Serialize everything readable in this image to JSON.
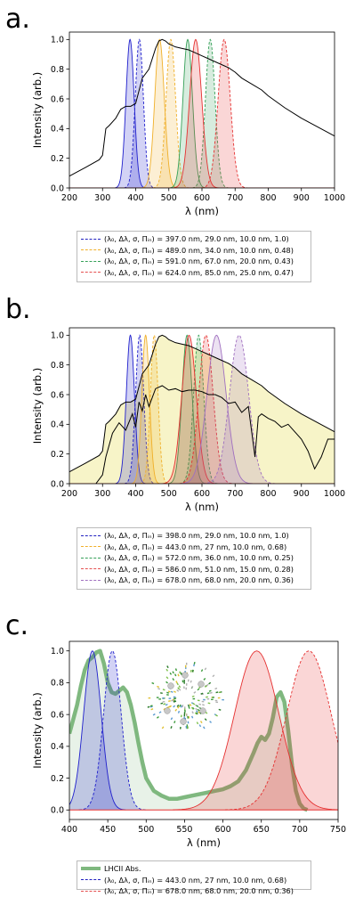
{
  "chart_data": [
    {
      "type": "line",
      "panel_label": "a.",
      "xlabel": "λ (nm)",
      "ylabel": "Intensity (arb.)",
      "xlim": [
        200,
        1000
      ],
      "ylim": [
        0,
        1.05
      ],
      "xticks": [
        "200",
        "300",
        "400",
        "500",
        "600",
        "700",
        "800",
        "900",
        "1000"
      ],
      "yticks": [
        "0.0",
        "0.2",
        "0.4",
        "0.6",
        "0.8",
        "1.0"
      ],
      "grid": false,
      "legend_position": "below",
      "spectrum": {
        "color": "#000000",
        "x": [
          200,
          250,
          290,
          300,
          310,
          320,
          340,
          355,
          370,
          385,
          400,
          420,
          440,
          460,
          470,
          480,
          490,
          500,
          520,
          540,
          560,
          580,
          600,
          620,
          650,
          680,
          700,
          720,
          750,
          780,
          800,
          850,
          900,
          950,
          1000
        ],
        "y": [
          0.08,
          0.14,
          0.19,
          0.22,
          0.4,
          0.42,
          0.47,
          0.53,
          0.55,
          0.55,
          0.57,
          0.74,
          0.8,
          0.94,
          0.99,
          1.0,
          0.99,
          0.97,
          0.95,
          0.94,
          0.93,
          0.91,
          0.89,
          0.87,
          0.84,
          0.81,
          0.78,
          0.74,
          0.7,
          0.66,
          0.62,
          0.54,
          0.47,
          0.41,
          0.35
        ]
      },
      "bands": [
        {
          "center": 383,
          "fwhm": 29,
          "color": "#1f1fcc",
          "dash": false
        },
        {
          "center": 411,
          "fwhm": 29,
          "color": "#1f1fcc",
          "dash": true
        },
        {
          "center": 472,
          "fwhm": 34,
          "color": "#f0b02a",
          "dash": false
        },
        {
          "center": 506,
          "fwhm": 34,
          "color": "#f0b02a",
          "dash": true
        },
        {
          "center": 557,
          "fwhm": 34,
          "color": "#35a058",
          "dash": false
        },
        {
          "center": 625,
          "fwhm": 34,
          "color": "#35a058",
          "dash": true
        },
        {
          "center": 581,
          "fwhm": 43,
          "color": "#e53030",
          "dash": false
        },
        {
          "center": 667,
          "fwhm": 43,
          "color": "#e53030",
          "dash": true
        }
      ],
      "legend": [
        {
          "color": "#2020c0",
          "text": "(λ₀, Δλ, σ, Πᵢₙ) = 397.0 nm, 29.0 nm, 10.0 nm, 1.0)"
        },
        {
          "color": "#f0b02a",
          "text": "(λ₀, Δλ, σ, Πᵢₙ) = 489.0 nm, 34.0 nm, 10.0 nm, 0.48)"
        },
        {
          "color": "#35a058",
          "text": "(λ₀, Δλ, σ, Πᵢₙ) = 591.0 nm, 67.0 nm, 20.0 nm, 0.43)"
        },
        {
          "color": "#e55050",
          "text": "(λ₀, Δλ, σ, Πᵢₙ) = 624.0 nm, 85.0 nm, 25.0 nm, 0.47)"
        }
      ]
    },
    {
      "type": "line",
      "panel_label": "b.",
      "xlabel": "λ (nm)",
      "ylabel": "Intensity (arb.)",
      "xlim": [
        200,
        1000
      ],
      "ylim": [
        0,
        1.05
      ],
      "xticks": [
        "200",
        "300",
        "400",
        "500",
        "600",
        "700",
        "800",
        "900",
        "1000"
      ],
      "yticks": [
        "0.0",
        "0.2",
        "0.4",
        "0.6",
        "0.8",
        "1.0"
      ],
      "grid": false,
      "legend_position": "below",
      "spectrum": {
        "color": "#000000",
        "fill": "#f7f4c8",
        "x": [
          200,
          250,
          290,
          300,
          310,
          320,
          340,
          355,
          370,
          385,
          400,
          420,
          440,
          460,
          470,
          480,
          490,
          500,
          520,
          540,
          560,
          580,
          600,
          620,
          650,
          680,
          700,
          720,
          750,
          780,
          800,
          850,
          900,
          950,
          1000
        ],
        "y": [
          0.08,
          0.14,
          0.19,
          0.22,
          0.4,
          0.42,
          0.47,
          0.53,
          0.55,
          0.55,
          0.57,
          0.74,
          0.8,
          0.94,
          0.99,
          1.0,
          0.99,
          0.97,
          0.95,
          0.94,
          0.93,
          0.91,
          0.89,
          0.87,
          0.84,
          0.81,
          0.78,
          0.74,
          0.7,
          0.66,
          0.62,
          0.54,
          0.47,
          0.41,
          0.35
        ]
      },
      "spectrum2": {
        "color": "#000000",
        "x": [
          280,
          300,
          310,
          330,
          350,
          370,
          390,
          400,
          410,
          420,
          430,
          440,
          460,
          480,
          500,
          520,
          540,
          560,
          580,
          600,
          620,
          640,
          660,
          680,
          700,
          720,
          740,
          760,
          770,
          780,
          800,
          820,
          840,
          860,
          880,
          900,
          920,
          940,
          960,
          980,
          1000
        ],
        "y": [
          0.0,
          0.06,
          0.18,
          0.34,
          0.41,
          0.36,
          0.47,
          0.38,
          0.55,
          0.49,
          0.6,
          0.52,
          0.64,
          0.66,
          0.63,
          0.64,
          0.62,
          0.63,
          0.63,
          0.62,
          0.6,
          0.6,
          0.58,
          0.54,
          0.55,
          0.48,
          0.52,
          0.18,
          0.45,
          0.47,
          0.44,
          0.42,
          0.38,
          0.4,
          0.35,
          0.3,
          0.22,
          0.1,
          0.18,
          0.3,
          0.3
        ]
      },
      "bands": [
        {
          "center": 384,
          "fwhm": 29,
          "color": "#1f1fcc",
          "dash": false
        },
        {
          "center": 412,
          "fwhm": 29,
          "color": "#1f1fcc",
          "dash": true
        },
        {
          "center": 430,
          "fwhm": 27,
          "color": "#f0b02a",
          "dash": false
        },
        {
          "center": 456,
          "fwhm": 27,
          "color": "#f0b02a",
          "dash": true
        },
        {
          "center": 555,
          "fwhm": 36,
          "color": "#35a058",
          "dash": false
        },
        {
          "center": 590,
          "fwhm": 36,
          "color": "#35a058",
          "dash": true
        },
        {
          "center": 561,
          "fwhm": 51,
          "color": "#e53030",
          "dash": false
        },
        {
          "center": 612,
          "fwhm": 51,
          "color": "#e53030",
          "dash": true
        },
        {
          "center": 644,
          "fwhm": 68,
          "color": "#a070c0",
          "dash": false
        },
        {
          "center": 712,
          "fwhm": 68,
          "color": "#a070c0",
          "dash": true
        }
      ],
      "legend": [
        {
          "color": "#2020c0",
          "text": "(λ₀, Δλ, σ, Πᵢₙ) = 398.0 nm, 29.0 nm, 10.0 nm, 1.0)"
        },
        {
          "color": "#f0b02a",
          "text": "(λ₀, Δλ, σ, Πᵢₙ) = 443.0 nm, 27 nm, 10.0 nm, 0.68)"
        },
        {
          "color": "#35a058",
          "text": "(λ₀, Δλ, σ, Πᵢₙ) = 572.0 nm, 36.0 nm, 10.0 nm, 0.25)"
        },
        {
          "color": "#e55050",
          "text": "(λ₀, Δλ, σ, Πᵢₙ) = 586.0 nm, 51.0 nm, 15.0 nm, 0.28)"
        },
        {
          "color": "#a070c0",
          "text": "(λ₀, Δλ, σ, Πᵢₙ) = 678.0 nm, 68.0 nm, 20.0 nm, 0.36)"
        }
      ]
    },
    {
      "type": "line",
      "panel_label": "c.",
      "xlabel": "λ (nm)",
      "ylabel": "Intensity (arb.)",
      "xlim": [
        400,
        750
      ],
      "ylim": [
        -0.06,
        1.06
      ],
      "xticks": [
        "400",
        "450",
        "500",
        "550",
        "600",
        "650",
        "700",
        "750"
      ],
      "yticks": [
        "0.0",
        "0.2",
        "0.4",
        "0.6",
        "0.8",
        "1.0"
      ],
      "grid": false,
      "legend_position": "below",
      "lhcii": {
        "color": "#7fb87f",
        "x": [
          400,
          405,
          410,
          415,
          420,
          425,
          430,
          435,
          440,
          445,
          450,
          455,
          460,
          465,
          470,
          475,
          480,
          485,
          490,
          495,
          500,
          510,
          520,
          530,
          540,
          550,
          560,
          570,
          580,
          590,
          600,
          610,
          620,
          630,
          640,
          645,
          650,
          655,
          660,
          665,
          670,
          675,
          680,
          685,
          690,
          695,
          700,
          705,
          710
        ],
        "y": [
          0.48,
          0.57,
          0.66,
          0.78,
          0.88,
          0.94,
          0.96,
          0.99,
          1.0,
          0.92,
          0.8,
          0.74,
          0.73,
          0.75,
          0.77,
          0.74,
          0.66,
          0.55,
          0.42,
          0.3,
          0.2,
          0.12,
          0.09,
          0.07,
          0.07,
          0.08,
          0.09,
          0.1,
          0.11,
          0.12,
          0.13,
          0.15,
          0.18,
          0.25,
          0.36,
          0.42,
          0.46,
          0.44,
          0.48,
          0.58,
          0.71,
          0.74,
          0.68,
          0.5,
          0.28,
          0.12,
          0.04,
          0.01,
          0.0
        ]
      },
      "bands": [
        {
          "center": 430,
          "fwhm": 27,
          "color": "#1f1fcc",
          "dash": false
        },
        {
          "center": 456,
          "fwhm": 27,
          "color": "#1f1fcc",
          "dash": true
        },
        {
          "center": 644,
          "fwhm": 68,
          "color": "#e53030",
          "dash": false
        },
        {
          "center": 712,
          "fwhm": 68,
          "color": "#e53030",
          "dash": true
        }
      ],
      "legend": [
        {
          "color": "#7fb87f",
          "text": "LHCII Abs.",
          "thick": true
        },
        {
          "color": "#2020c0",
          "text": "(λ₀, Δλ, σ, Πᵢₙ) = 443.0 nm, 27 nm, 10.0 nm, 0.68)"
        },
        {
          "color": "#e55050",
          "text": "(λ₀, Δλ, σ, Πᵢₙ) = 678.0 nm, 68.0 nm, 20.0 nm, 0.36)"
        }
      ]
    }
  ]
}
